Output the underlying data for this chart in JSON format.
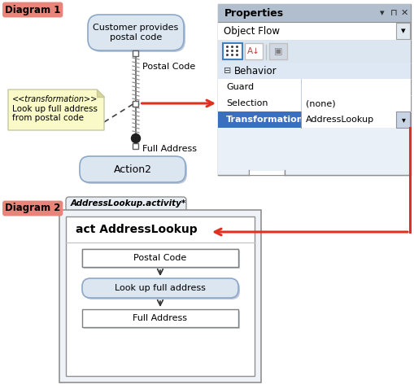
{
  "diagram1_label": "Diagram 1",
  "diagram2_label": "Diagram 2",
  "label_bg": "#e8847a",
  "customer_box_text": "Customer provides\npostal code",
  "postal_code_label": "Postal Code",
  "full_address_label": "Full Address",
  "action2_label": "Action2",
  "transformation_note_line1": "<<transformation>>",
  "transformation_note_line2": "Look up full address",
  "transformation_note_line3": "from postal code",
  "properties_title": "Properties",
  "object_flow_text": "Object Flow",
  "behavior_text": "Behavior",
  "guard_text": "Guard",
  "selection_text": "Selection",
  "selection_value": "(none)",
  "transformation_text": "Transformation",
  "transformation_value": "AddressLookup",
  "diagram2_tab": "AddressLookup.activity*",
  "act_title": "act AddressLookup",
  "d2_postal_code": "Postal Code",
  "d2_action": "Look up full address",
  "d2_full_address": "Full Address",
  "box_fill": "#dce6f1",
  "box_border": "#8ca8c8",
  "note_fill": "#fafac8",
  "note_border": "#c8c8a0",
  "props_header_bg": "#b0c4d8",
  "props_content_bg": "#e8f0f8",
  "transform_bg": "#3a6fc0",
  "props_border": "#909090"
}
